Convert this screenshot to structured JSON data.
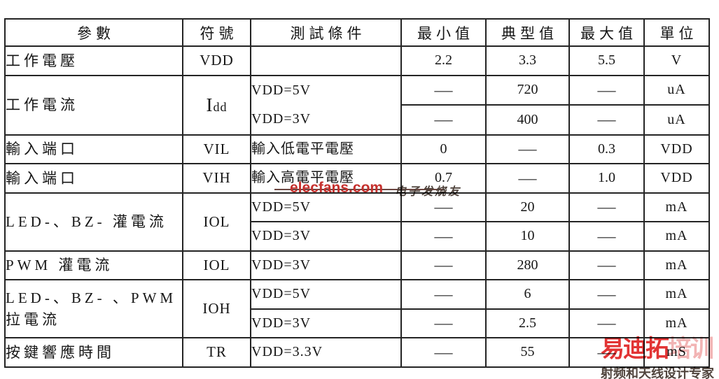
{
  "table": {
    "columns": [
      {
        "key": "param",
        "label": "參數"
      },
      {
        "key": "symbol",
        "label": "符號"
      },
      {
        "key": "condition",
        "label": "測試條件"
      },
      {
        "key": "min",
        "label": "最小值"
      },
      {
        "key": "typ",
        "label": "典型值"
      },
      {
        "key": "max",
        "label": "最大值"
      },
      {
        "key": "unit",
        "label": "單位"
      }
    ],
    "rows": [
      {
        "cells": [
          {
            "t": "工作電壓",
            "cls": "left cjk",
            "name": "param-cell"
          },
          {
            "t": "VDD",
            "cls": "center sym",
            "name": "symbol-cell"
          },
          {
            "t": "",
            "cls": "left cond",
            "name": "condition-cell"
          },
          {
            "t": "2.2",
            "cls": "center val",
            "name": "min-cell"
          },
          {
            "t": "3.3",
            "cls": "center val",
            "name": "typ-cell"
          },
          {
            "t": "5.5",
            "cls": "center val",
            "name": "max-cell"
          },
          {
            "t": "V",
            "cls": "center unit",
            "name": "unit-cell"
          }
        ]
      },
      {
        "cells": [
          {
            "t": "工作電流",
            "cls": "left cjk",
            "name": "param-cell",
            "rs": 2
          },
          {
            "main": "I",
            "sub": "dd",
            "cls": "center sym",
            "name": "symbol-cell",
            "rs": 2
          },
          {
            "lines": [
              "VDD=5V",
              "VDD=3V"
            ],
            "cls": "left cond",
            "name": "condition-cell",
            "rs": 2
          },
          {
            "t": "—",
            "cls": "center val",
            "name": "min-cell"
          },
          {
            "t": "720",
            "cls": "center val",
            "name": "typ-cell"
          },
          {
            "t": "—",
            "cls": "center val",
            "name": "max-cell"
          },
          {
            "t": "uA",
            "cls": "center unit",
            "name": "unit-cell"
          }
        ]
      },
      {
        "cells": [
          {
            "t": "—",
            "cls": "center val",
            "name": "min-cell"
          },
          {
            "t": "400",
            "cls": "center val",
            "name": "typ-cell"
          },
          {
            "t": "—",
            "cls": "center val",
            "name": "max-cell"
          },
          {
            "t": "uA",
            "cls": "center unit",
            "name": "unit-cell"
          }
        ]
      },
      {
        "cells": [
          {
            "t": "輸入端口",
            "cls": "left cjk",
            "name": "param-cell"
          },
          {
            "t": "VIL",
            "cls": "center sym",
            "name": "symbol-cell"
          },
          {
            "t": "輸入低電平電壓",
            "cls": "left cond cjk",
            "name": "condition-cell"
          },
          {
            "t": "0",
            "cls": "center val",
            "name": "min-cell"
          },
          {
            "t": "—",
            "cls": "center val",
            "name": "typ-cell"
          },
          {
            "t": "0.3",
            "cls": "center val",
            "name": "max-cell"
          },
          {
            "t": "VDD",
            "cls": "center unit",
            "name": "unit-cell"
          }
        ]
      },
      {
        "cells": [
          {
            "t": "輸入端口",
            "cls": "left cjk",
            "name": "param-cell"
          },
          {
            "t": "VIH",
            "cls": "center sym",
            "name": "symbol-cell"
          },
          {
            "t": "輸入高電平電壓",
            "cls": "left cond cjk",
            "name": "condition-cell"
          },
          {
            "t": "0.7",
            "cls": "center val",
            "name": "min-cell"
          },
          {
            "t": "—",
            "cls": "center val",
            "name": "typ-cell"
          },
          {
            "t": "1.0",
            "cls": "center val",
            "name": "max-cell"
          },
          {
            "t": "VDD",
            "cls": "center unit",
            "name": "unit-cell"
          }
        ]
      },
      {
        "cells": [
          {
            "t": "LED-、BZ- 灌電流",
            "cls": "left cjk",
            "name": "param-cell",
            "rs": 2
          },
          {
            "t": "IOL",
            "cls": "center sym",
            "name": "symbol-cell",
            "rs": 2
          },
          {
            "t": "VDD=5V",
            "cls": "left cond",
            "name": "condition-cell"
          },
          {
            "t": "—",
            "cls": "center val",
            "name": "min-cell"
          },
          {
            "t": "20",
            "cls": "center val",
            "name": "typ-cell"
          },
          {
            "t": "—",
            "cls": "center val",
            "name": "max-cell"
          },
          {
            "t": "mA",
            "cls": "center unit",
            "name": "unit-cell"
          }
        ]
      },
      {
        "cells": [
          {
            "t": "VDD=3V",
            "cls": "left cond",
            "name": "condition-cell"
          },
          {
            "t": "—",
            "cls": "center val",
            "name": "min-cell"
          },
          {
            "t": "10",
            "cls": "center val",
            "name": "typ-cell"
          },
          {
            "t": "—",
            "cls": "center val",
            "name": "max-cell"
          },
          {
            "t": "mA",
            "cls": "center unit",
            "name": "unit-cell"
          }
        ]
      },
      {
        "cells": [
          {
            "t": "PWM 灌電流",
            "cls": "left cjk",
            "name": "param-cell"
          },
          {
            "t": "IOL",
            "cls": "center sym",
            "name": "symbol-cell"
          },
          {
            "t": "VDD=3V",
            "cls": "left cond",
            "name": "condition-cell"
          },
          {
            "t": "—",
            "cls": "center val",
            "name": "min-cell"
          },
          {
            "t": "280",
            "cls": "center val",
            "name": "typ-cell"
          },
          {
            "t": "—",
            "cls": "center val",
            "name": "max-cell"
          },
          {
            "t": "mA",
            "cls": "center unit",
            "name": "unit-cell"
          }
        ]
      },
      {
        "cells": [
          {
            "t": "LED-、BZ- 、PWM 拉電流",
            "cls": "left cjk",
            "name": "param-cell",
            "rs": 2
          },
          {
            "t": "IOH",
            "cls": "center sym",
            "name": "symbol-cell",
            "rs": 2
          },
          {
            "t": "VDD=5V",
            "cls": "left cond",
            "name": "condition-cell"
          },
          {
            "t": "—",
            "cls": "center val",
            "name": "min-cell"
          },
          {
            "t": "6",
            "cls": "center val",
            "name": "typ-cell"
          },
          {
            "t": "—",
            "cls": "center val",
            "name": "max-cell"
          },
          {
            "t": "mA",
            "cls": "center unit",
            "name": "unit-cell"
          }
        ]
      },
      {
        "cells": [
          {
            "t": "VDD=3V",
            "cls": "left cond",
            "name": "condition-cell"
          },
          {
            "t": "—",
            "cls": "center val",
            "name": "min-cell"
          },
          {
            "t": "2.5",
            "cls": "center val",
            "name": "typ-cell"
          },
          {
            "t": "—",
            "cls": "center val",
            "name": "max-cell"
          },
          {
            "t": "mA",
            "cls": "center unit",
            "name": "unit-cell"
          }
        ]
      },
      {
        "cells": [
          {
            "t": "按鍵響應時間",
            "cls": "left cjk",
            "name": "param-cell"
          },
          {
            "t": "TR",
            "cls": "center sym",
            "name": "symbol-cell"
          },
          {
            "t": "VDD=3.3V",
            "cls": "left cond",
            "name": "condition-cell"
          },
          {
            "t": "—",
            "cls": "center val",
            "name": "min-cell"
          },
          {
            "t": "55",
            "cls": "center val",
            "name": "typ-cell"
          },
          {
            "t": "—",
            "cls": "center val",
            "name": "max-cell"
          },
          {
            "t": "mS",
            "cls": "center unit",
            "name": "unit-cell"
          }
        ]
      }
    ]
  },
  "watermarks": {
    "center": {
      "brand": "elecfans.com",
      "suffix": "电子发烧友"
    },
    "corner": {
      "logo_main": "易迪拓",
      "logo_sub": "培训",
      "tagline": "射频和天线设计专家"
    }
  },
  "colors": {
    "brand_red": "#c5302d",
    "logo_red": "#e23434",
    "logo_pink": "#f2b4b4",
    "border_dark": "#242424"
  }
}
